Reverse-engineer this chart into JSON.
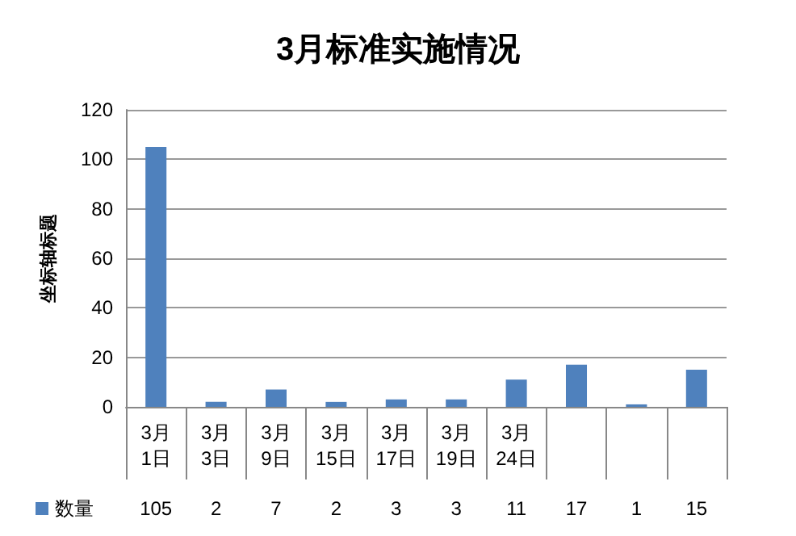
{
  "chart_data": {
    "type": "bar",
    "title": "3月标准实施情况",
    "ylabel": "坐标轴标题",
    "categories": [
      "3月1日",
      "3月3日",
      "3月9日",
      "3月15日",
      "3月17日",
      "3月19日",
      "3月24日",
      null,
      null,
      null
    ],
    "series": [
      {
        "name": "数量",
        "color": "#4f81bd",
        "values": [
          105,
          2,
          7,
          2,
          3,
          3,
          11,
          17,
          1,
          15
        ]
      }
    ],
    "ylim": [
      0,
      120
    ],
    "yticks": [
      0,
      20,
      40,
      60,
      80,
      100,
      120
    ],
    "grid": "y",
    "legend": "bottom left",
    "data_labels": true
  }
}
